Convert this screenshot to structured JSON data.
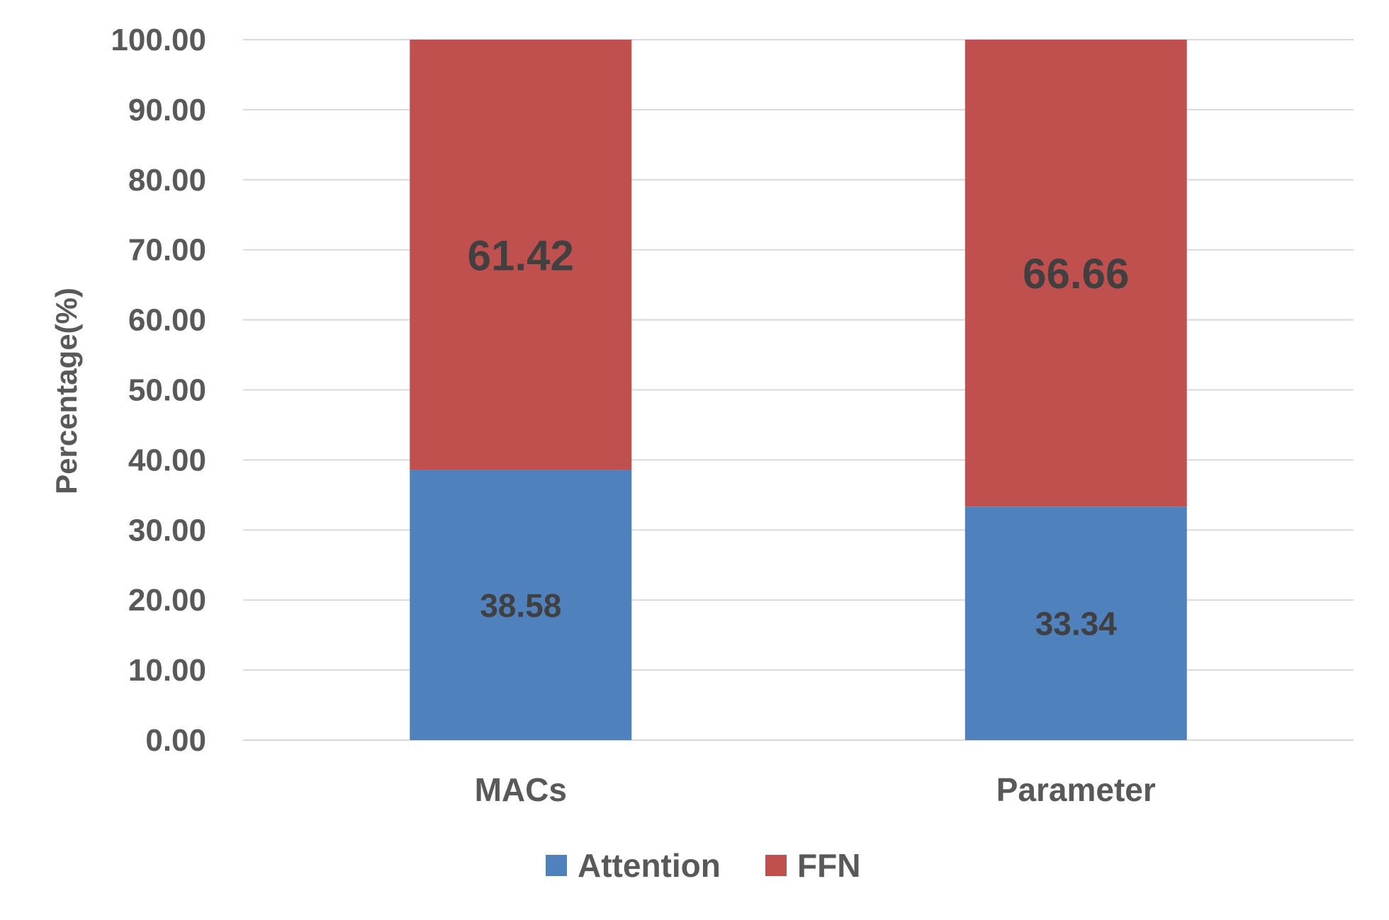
{
  "chart_data": {
    "type": "bar",
    "stacked": true,
    "categories": [
      "MACs",
      "Parameter"
    ],
    "series": [
      {
        "name": "Attention",
        "values": [
          38.58,
          33.34
        ],
        "labels": [
          "38.58",
          "33.34"
        ],
        "color": "#4f81bd"
      },
      {
        "name": "FFN",
        "values": [
          61.42,
          66.66
        ],
        "labels": [
          "61.42",
          "66.66"
        ],
        "color": "#c0504d"
      }
    ],
    "ylabel": "Percentage(%)",
    "xlabel": "",
    "ylim": [
      0,
      100
    ],
    "yticks": [
      "0.00",
      "10.00",
      "20.00",
      "30.00",
      "40.00",
      "50.00",
      "60.00",
      "70.00",
      "80.00",
      "90.00",
      "100.00"
    ],
    "grid": true,
    "legend_position": "bottom"
  }
}
